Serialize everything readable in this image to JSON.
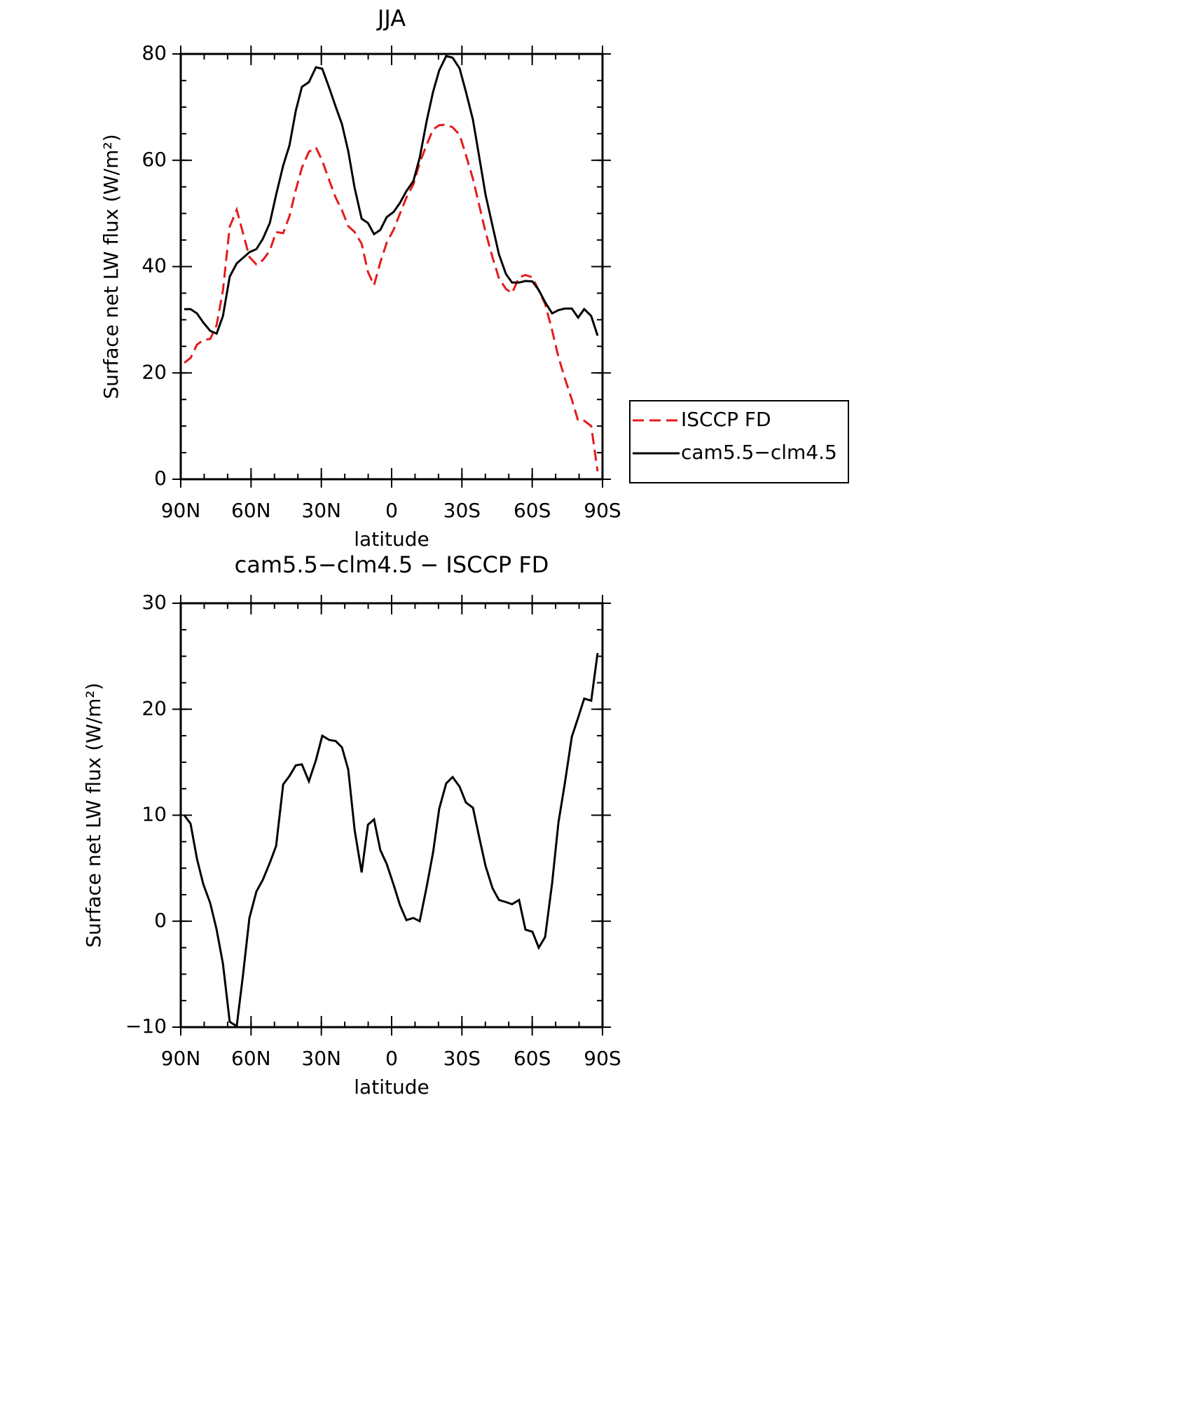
{
  "chart_data": [
    {
      "type": "line",
      "title": "JJA",
      "x_label": "latitude",
      "y_label": "Surface net LW flux (W/m²)",
      "xlim": [
        90,
        -90
      ],
      "xticks": [
        {
          "value": 90,
          "label": "90N"
        },
        {
          "value": 60,
          "label": "60N"
        },
        {
          "value": 30,
          "label": "30N"
        },
        0,
        {
          "value": -30,
          "label": "30S"
        },
        {
          "value": -60,
          "label": "60S"
        },
        {
          "value": -90,
          "label": "90S"
        }
      ],
      "ylim": [
        0,
        80
      ],
      "yticks": [
        0,
        20,
        40,
        60,
        80
      ],
      "legend": "outside right",
      "x": [
        88.5,
        85.8,
        83.1,
        80.4,
        77.4,
        74.7,
        72.0,
        69.1,
        66.1,
        60.7,
        57.7,
        55.0,
        52.0,
        49.3,
        46.3,
        43.6,
        40.9,
        38.3,
        35.3,
        32.3,
        29.6,
        26.6,
        23.9,
        21.2,
        18.5,
        15.8,
        12.8,
        10.1,
        7.5,
        4.8,
        2.1,
        -0.9,
        -3.6,
        -6.3,
        -9.3,
        -12.0,
        -15.0,
        -17.7,
        -20.3,
        -23.3,
        -26.0,
        -29.0,
        -31.7,
        -34.7,
        -37.4,
        -40.1,
        -43.1,
        -45.8,
        -48.8,
        -51.4,
        -54.4,
        -57.1,
        -60.1,
        -62.8,
        -65.5,
        -68.5,
        -71.2,
        -73.9,
        -76.9,
        -79.6,
        -82.2,
        -85.2,
        -87.9
      ],
      "series": [
        {
          "name": "ISCCP FD",
          "color": "#e41a1c",
          "style": "dashed",
          "values": [
            21.9,
            22.8,
            25.3,
            26.2,
            26.4,
            29.0,
            35.5,
            47.5,
            50.7,
            41.8,
            40.4,
            41.2,
            43.0,
            46.5,
            46.3,
            49.5,
            54.4,
            58.6,
            61.6,
            62.4,
            59.9,
            56.2,
            53.0,
            50.6,
            47.6,
            46.5,
            44.3,
            39.0,
            36.5,
            40.8,
            44.5,
            47.0,
            50.0,
            53.0,
            55.5,
            59.5,
            63.0,
            65.8,
            66.6,
            66.7,
            66.2,
            64.8,
            61.0,
            56.5,
            51.5,
            46.5,
            41.7,
            37.8,
            35.8,
            35.0,
            38.0,
            38.4,
            38.0,
            35.5,
            33.0,
            28.0,
            23.0,
            19.0,
            15.0,
            11.0,
            11.0,
            10.0,
            1.5
          ]
        },
        {
          "name": "cam5.5−clm4.5",
          "color": "#000000",
          "style": "solid",
          "values": [
            32.0,
            32.0,
            31.2,
            29.5,
            27.9,
            27.4,
            30.7,
            38.1,
            40.6,
            42.7,
            43.3,
            45.2,
            48.2,
            53.5,
            59.0,
            62.8,
            69.3,
            73.8,
            74.7,
            77.5,
            77.2,
            73.6,
            70.1,
            66.8,
            61.7,
            54.8,
            49.0,
            48.2,
            46.1,
            46.9,
            49.3,
            50.3,
            52.0,
            54.2,
            56.1,
            60.5,
            67.5,
            72.9,
            76.9,
            79.6,
            79.3,
            77.3,
            72.9,
            67.6,
            60.6,
            53.5,
            47.6,
            42.3,
            38.6,
            37.0,
            37.0,
            37.3,
            37.2,
            35.6,
            33.3,
            31.2,
            31.8,
            32.1,
            32.1,
            30.4,
            32.0,
            30.7,
            27.0
          ]
        }
      ]
    },
    {
      "type": "line",
      "title": "cam5.5−clm4.5 − ISCCP FD",
      "x_label": "latitude",
      "y_label": "Surface net LW flux (W/m²)",
      "xlim": [
        90,
        -90
      ],
      "xticks": [
        {
          "value": 90,
          "label": "90N"
        },
        {
          "value": 60,
          "label": "60N"
        },
        {
          "value": 30,
          "label": "30N"
        },
        0,
        {
          "value": -30,
          "label": "30S"
        },
        {
          "value": -60,
          "label": "60S"
        },
        {
          "value": -90,
          "label": "90S"
        }
      ],
      "ylim": [
        -10,
        30
      ],
      "yticks": [
        {
          "value": -10,
          "label": "−10"
        },
        0,
        10,
        20,
        30
      ],
      "x": [
        88.5,
        85.8,
        83.1,
        80.4,
        77.4,
        74.7,
        72.0,
        69.1,
        66.1,
        63.4,
        60.7,
        57.7,
        55.0,
        52.0,
        49.3,
        46.3,
        43.6,
        40.9,
        38.3,
        35.3,
        32.3,
        29.6,
        26.6,
        23.9,
        21.2,
        18.5,
        15.8,
        12.8,
        10.1,
        7.5,
        4.8,
        2.1,
        -0.9,
        -3.6,
        -6.3,
        -9.3,
        -12.0,
        -15.0,
        -17.7,
        -20.3,
        -23.3,
        -26.0,
        -29.0,
        -31.7,
        -34.7,
        -37.4,
        -40.1,
        -43.1,
        -45.8,
        -48.8,
        -51.4,
        -54.4,
        -57.1,
        -60.1,
        -62.8,
        -65.5,
        -68.5,
        -71.2,
        -73.9,
        -76.9,
        -79.6,
        -82.2,
        -85.2,
        -87.9
      ],
      "series": [
        {
          "color": "#000000",
          "style": "solid",
          "values": [
            10.0,
            9.2,
            5.9,
            3.5,
            1.7,
            -0.8,
            -4.0,
            -9.5,
            -9.9,
            -5.0,
            0.3,
            2.8,
            3.9,
            5.5,
            7.1,
            12.9,
            13.7,
            14.7,
            14.8,
            13.2,
            15.2,
            17.5,
            17.1,
            17.0,
            16.4,
            14.3,
            8.6,
            4.6,
            9.1,
            9.6,
            6.7,
            5.4,
            3.4,
            1.5,
            0.1,
            0.3,
            0.0,
            3.3,
            6.5,
            10.6,
            13.0,
            13.6,
            12.7,
            11.2,
            10.7,
            7.9,
            5.2,
            3.1,
            2.0,
            1.8,
            1.6,
            2.0,
            -0.8,
            -1.0,
            -2.5,
            -1.5,
            3.6,
            9.3,
            13.0,
            17.4,
            19.2,
            21.0,
            20.8,
            25.3
          ]
        }
      ]
    }
  ]
}
